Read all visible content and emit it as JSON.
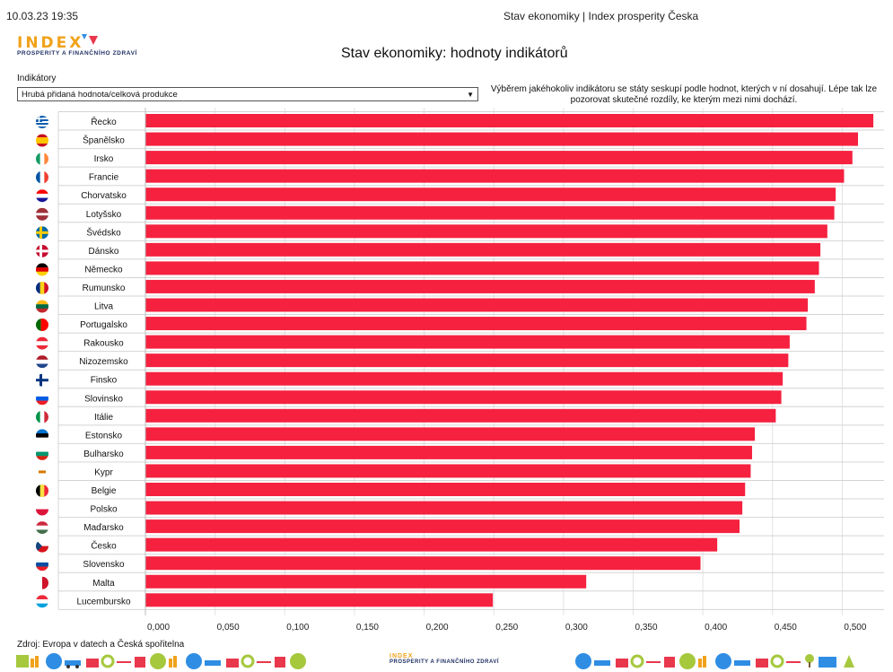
{
  "header": {
    "datetime": "10.03.23 19:35",
    "page_title": "Stav ekonomiky | Index prosperity Česka"
  },
  "logo": {
    "word": "INDEX",
    "tagline": "PROSPERITY A FINANČNÍHO ZDRAVÍ"
  },
  "chart_heading": "Stav ekonomiky: hodnoty indikátorů",
  "indicator": {
    "label": "Indikátory",
    "selected": "Hrubá přidaná hodnota/celková produkce"
  },
  "note": "Výběrem jakéhokoliv indikátoru se státy seskupí podle hodnot, kterých v ní dosahují. Lépe tak lze pozorovat skutečné rozdíly, ke kterým mezi nimi dochází.",
  "source": "Zdroj: Evropa v datech a Česká spořitelna",
  "footer_logo": {
    "word": "INDEX",
    "tagline": "PROSPERITY A FINANČNÍHO ZDRAVÍ"
  },
  "colors": {
    "bar": "#f5213f",
    "logo_orange": "#f0a21a",
    "logo_navy": "#1e2f63",
    "footer_blue": "#2f8de4",
    "footer_green": "#a6c83d",
    "footer_red": "#e9374c"
  },
  "chart_data": {
    "type": "bar",
    "orientation": "horizontal",
    "categories": [
      "Řecko",
      "Španělsko",
      "Irsko",
      "Francie",
      "Chorvatsko",
      "Lotyšsko",
      "Švédsko",
      "Dánsko",
      "Německo",
      "Rumunsko",
      "Litva",
      "Portugalsko",
      "Rakousko",
      "Nizozemsko",
      "Finsko",
      "Slovinsko",
      "Itálie",
      "Estonsko",
      "Bulharsko",
      "Kypr",
      "Belgie",
      "Polsko",
      "Maďarsko",
      "Česko",
      "Slovensko",
      "Malta",
      "Lucembursko"
    ],
    "values": [
      0.522,
      0.511,
      0.507,
      0.501,
      0.495,
      0.494,
      0.489,
      0.484,
      0.483,
      0.48,
      0.475,
      0.474,
      0.462,
      0.461,
      0.457,
      0.456,
      0.452,
      0.437,
      0.435,
      0.434,
      0.43,
      0.428,
      0.426,
      0.41,
      0.398,
      0.316,
      0.249
    ],
    "xlim": [
      0,
      0.53
    ],
    "xticks": [
      "0,000",
      "0,050",
      "0,100",
      "0,150",
      "0,200",
      "0,250",
      "0,300",
      "0,350",
      "0,400",
      "0,450",
      "0,500"
    ],
    "xtick_values": [
      0,
      0.05,
      0.1,
      0.15,
      0.2,
      0.25,
      0.3,
      0.35,
      0.4,
      0.45,
      0.5
    ],
    "grid": true,
    "flags": [
      "gr",
      "es",
      "ie",
      "fr",
      "hr",
      "lv",
      "se",
      "dk",
      "de",
      "ro",
      "lt",
      "pt",
      "at",
      "nl",
      "fi",
      "si",
      "it",
      "ee",
      "bg",
      "cy",
      "be",
      "pl",
      "hu",
      "cz",
      "sk",
      "mt",
      "lu"
    ]
  }
}
